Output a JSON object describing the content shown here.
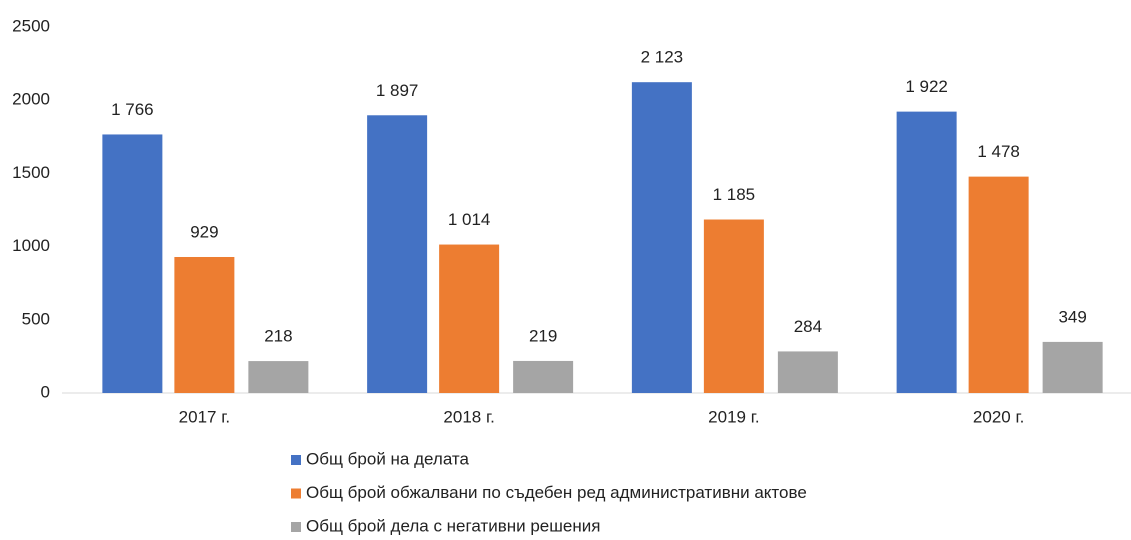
{
  "chart_data": {
    "type": "bar",
    "categories": [
      "2017 г.",
      "2018 г.",
      "2019 г.",
      "2020 г."
    ],
    "series": [
      {
        "name": "Общ брой на делата",
        "color": "#4472c4",
        "values": [
          1766,
          1897,
          2123,
          1922
        ],
        "value_labels": [
          "1 766",
          "1 897",
          "2 123",
          "1 922"
        ]
      },
      {
        "name": "Общ брой обжалвани по съдебен ред административни актове",
        "color": "#ed7d31",
        "values": [
          929,
          1014,
          1185,
          1478
        ],
        "value_labels": [
          "929",
          "1 014",
          "1 185",
          "1 478"
        ]
      },
      {
        "name": "Общ брой дела с негативни решения",
        "color": "#a5a5a5",
        "values": [
          218,
          219,
          284,
          349
        ],
        "value_labels": [
          "218",
          "219",
          "284",
          "349"
        ]
      }
    ],
    "ylim": [
      0,
      2500
    ],
    "yticks": [
      0,
      500,
      1000,
      1500,
      2000,
      2500
    ],
    "grid": false,
    "legend": "bottom"
  }
}
